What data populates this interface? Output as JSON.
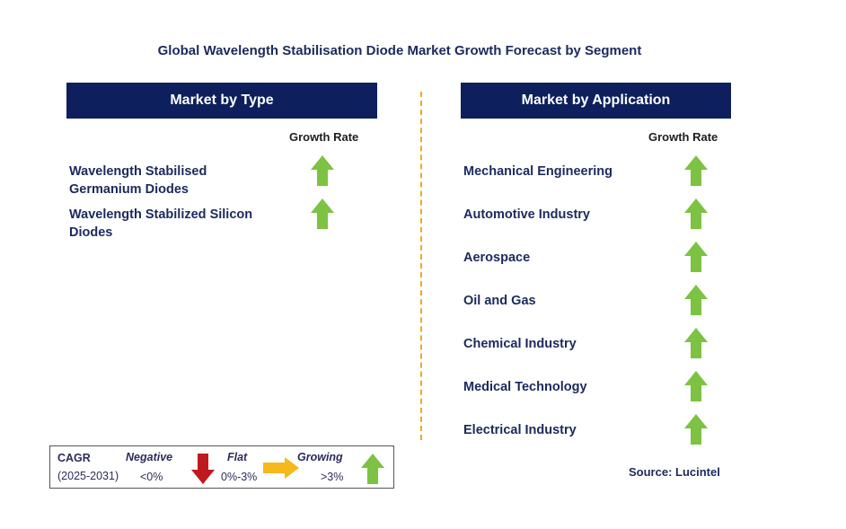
{
  "title": "Global Wavelength Stabilisation Diode Market Growth Forecast by Segment",
  "colors": {
    "header_bg": "#0d1f5c",
    "text": "#1b2a5c",
    "growing": "#7dc242",
    "negative": "#c0191d",
    "flat": "#f6b81a",
    "divider": "#f2a81d"
  },
  "chart_data": {
    "type": "table",
    "panels": [
      {
        "header": "Market by Type",
        "growth_rate_label": "Growth Rate",
        "segments": [
          {
            "label_lines": [
              "Wavelength Stabilised",
              "Germanium Diodes"
            ],
            "growth": "growing",
            "icon": "arrow-up-green"
          },
          {
            "label_lines": [
              "Wavelength Stabilized Silicon",
              "Diodes"
            ],
            "growth": "growing",
            "icon": "arrow-up-green"
          }
        ]
      },
      {
        "header": "Market by Application",
        "growth_rate_label": "Growth Rate",
        "segments": [
          {
            "label_lines": [
              "Mechanical Engineering"
            ],
            "growth": "growing",
            "icon": "arrow-up-green"
          },
          {
            "label_lines": [
              "Automotive Industry"
            ],
            "growth": "growing",
            "icon": "arrow-up-green"
          },
          {
            "label_lines": [
              "Aerospace"
            ],
            "growth": "growing",
            "icon": "arrow-up-green"
          },
          {
            "label_lines": [
              "Oil and Gas"
            ],
            "growth": "growing",
            "icon": "arrow-up-green"
          },
          {
            "label_lines": [
              "Chemical Industry"
            ],
            "growth": "growing",
            "icon": "arrow-up-green"
          },
          {
            "label_lines": [
              "Medical Technology"
            ],
            "growth": "growing",
            "icon": "arrow-up-green"
          },
          {
            "label_lines": [
              "Electrical Industry"
            ],
            "growth": "growing",
            "icon": "arrow-up-green"
          }
        ]
      }
    ],
    "legend": {
      "cagr_label": "CAGR",
      "period": "(2025-2031)",
      "items": [
        {
          "name": "Negative",
          "range": "<0%",
          "icon": "arrow-down-red"
        },
        {
          "name": "Flat",
          "range": "0%-3%",
          "icon": "arrow-right-yellow"
        },
        {
          "name": "Growing",
          "range": ">3%",
          "icon": "arrow-up-green"
        }
      ]
    }
  },
  "source": "Source: Lucintel"
}
